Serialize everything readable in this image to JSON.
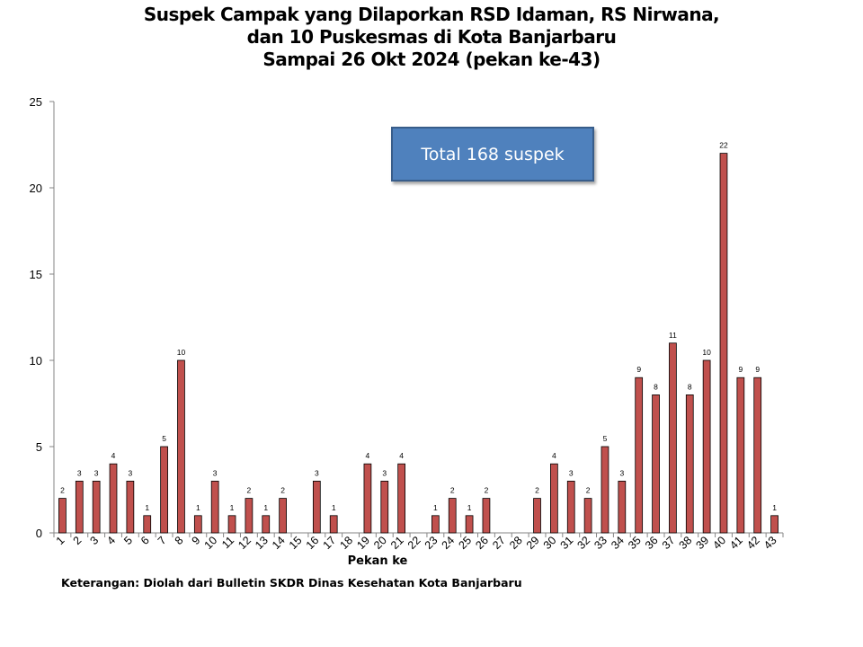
{
  "chart_data": {
    "type": "bar",
    "title": [
      "Suspek Campak yang Dilaporkan RSD Idaman, RS Nirwana,",
      "dan 10 Puskesmas di Kota Banjarbaru",
      "Sampai 26 Okt 2024 (pekan ke-43)"
    ],
    "xlabel": "Pekan ke",
    "ylabel": "",
    "categories": [
      "1",
      "2",
      "3",
      "4",
      "5",
      "6",
      "7",
      "8",
      "9",
      "10",
      "11",
      "12",
      "13",
      "14",
      "15",
      "16",
      "17",
      "18",
      "19",
      "20",
      "21",
      "22",
      "23",
      "24",
      "25",
      "26",
      "27",
      "28",
      "29",
      "30",
      "31",
      "32",
      "33",
      "34",
      "35",
      "36",
      "37",
      "38",
      "39",
      "40",
      "41",
      "42",
      "43"
    ],
    "values": [
      2,
      3,
      3,
      4,
      3,
      1,
      5,
      10,
      1,
      3,
      1,
      2,
      1,
      2,
      0,
      3,
      1,
      0,
      4,
      3,
      4,
      0,
      1,
      2,
      1,
      2,
      0,
      0,
      2,
      4,
      3,
      2,
      5,
      3,
      9,
      8,
      11,
      8,
      10,
      22,
      9,
      9,
      1
    ],
    "ylim": [
      0,
      25
    ],
    "yticks": [
      0,
      5,
      10,
      15,
      20,
      25
    ],
    "data_labels": true,
    "grid": false,
    "legend": "none",
    "bar_color": "#c0504d",
    "bar_edge_color": "#000000",
    "annotation": "Total 168 suspek",
    "annotation_color": "#4f81bd"
  },
  "note": "Keterangan: Diolah dari Bulletin SKDR Dinas Kesehatan Kota Banjarbaru"
}
